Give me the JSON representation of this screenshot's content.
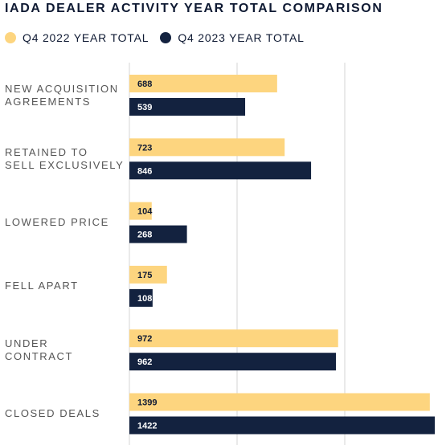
{
  "chart_data": {
    "type": "bar",
    "orientation": "horizontal",
    "title": "IADA DEALER ACTIVITY YEAR TOTAL COMPARISON",
    "categories": [
      "NEW ACQUISITION\nAGREEMENTS",
      "RETAINED TO\nSELL EXCLUSIVELY",
      "LOWERED PRICE",
      "FELL APART",
      "UNDER\nCONTRACT",
      "CLOSED DEALS"
    ],
    "series": [
      {
        "name": "Q4 2022 YEAR TOTAL",
        "color": "#fdd57f",
        "values": [
          688,
          723,
          104,
          175,
          972,
          1399
        ]
      },
      {
        "name": "Q4 2023 YEAR TOTAL",
        "color": "#13223f",
        "values": [
          539,
          846,
          268,
          108,
          962,
          1422
        ]
      }
    ],
    "xlim": [
      0,
      1422
    ],
    "grid": true,
    "legend": "top-left"
  }
}
